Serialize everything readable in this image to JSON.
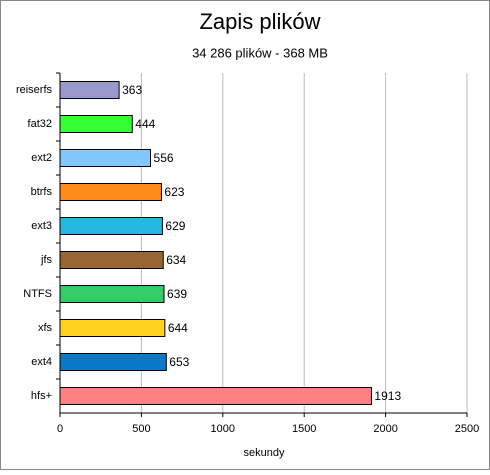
{
  "chart_data": {
    "type": "bar",
    "orientation": "horizontal",
    "title": "Zapis plików",
    "subtitle": "34 286 plików - 368 MB",
    "x_label": "sekundy",
    "categories": [
      "reiserfs",
      "fat32",
      "ext2",
      "btrfs",
      "ext3",
      "jfs",
      "NTFS",
      "xfs",
      "ext4",
      "hfs+"
    ],
    "values": [
      363,
      444,
      556,
      623,
      629,
      634,
      639,
      644,
      653,
      1913
    ],
    "colors": [
      "#9999cc",
      "#33ff33",
      "#80c8ff",
      "#ff8c1a",
      "#26b8e0",
      "#996633",
      "#33cc66",
      "#ffd21f",
      "#0a7ac8",
      "#ff8080"
    ],
    "xlim": [
      0,
      2500
    ],
    "xticks": [
      0,
      500,
      1000,
      1500,
      2000,
      2500
    ],
    "grid": true
  }
}
